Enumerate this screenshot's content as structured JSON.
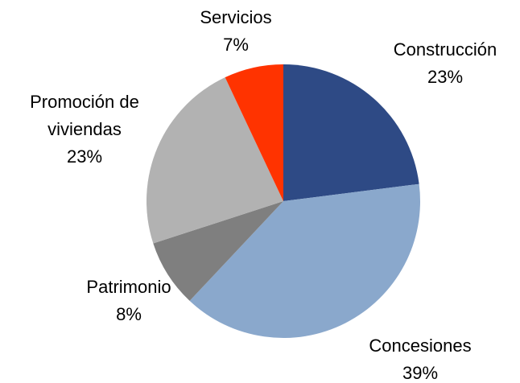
{
  "chart_data": {
    "type": "pie",
    "categories": [
      "Construcción",
      "Concesiones",
      "Patrimonio",
      "Promoción de viviendas",
      "Servicios"
    ],
    "values": [
      23,
      39,
      8,
      23,
      7
    ],
    "value_labels": [
      "23%",
      "39%",
      "8%",
      "23%",
      "7%"
    ],
    "colors": [
      "#2e4a85",
      "#8aa8cc",
      "#7f7f7f",
      "#b2b2b2",
      "#ff3300"
    ]
  }
}
